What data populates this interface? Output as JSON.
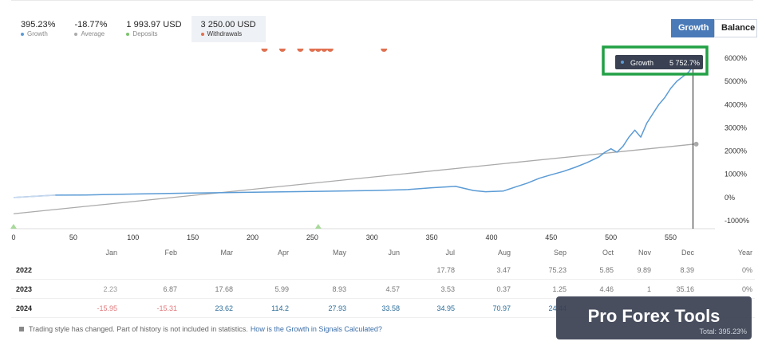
{
  "stats": [
    {
      "value": "395.23%",
      "label": "Growth",
      "color": "#5b9bd5"
    },
    {
      "value": "-18.77%",
      "label": "Average",
      "color": "#aaaaaa"
    },
    {
      "value": "1 993.97 USD",
      "label": "Deposits",
      "color": "#7cc36e"
    },
    {
      "value": "3 250.00 USD",
      "label": "Withdrawals",
      "color": "#e07050"
    }
  ],
  "toggle": {
    "growth": "Growth",
    "balance": "Balance"
  },
  "tooltip": {
    "label": "Growth",
    "value": "5 752.7%"
  },
  "chart_data": {
    "type": "line",
    "xlim": [
      0,
      575
    ],
    "ylim": [
      -1000,
      6000
    ],
    "x_ticks": [
      0,
      50,
      100,
      150,
      200,
      250,
      300,
      350,
      400,
      450,
      500,
      550
    ],
    "y_ticks": [
      "-1000%",
      "0%",
      "1000%",
      "2000%",
      "3000%",
      "4000%",
      "5000%",
      "6000%"
    ],
    "y_tick_values": [
      -1000,
      0,
      1000,
      2000,
      3000,
      4000,
      5000,
      6000
    ],
    "series": [
      {
        "name": "Growth",
        "color": "#5b9bd5",
        "x": [
          0,
          35,
          60,
          100,
          150,
          200,
          250,
          300,
          330,
          350,
          370,
          385,
          395,
          410,
          420,
          430,
          440,
          450,
          460,
          470,
          480,
          490,
          495,
          500,
          505,
          510,
          515,
          520,
          525,
          530,
          535,
          540,
          545,
          550,
          555,
          560,
          565,
          570
        ],
        "y": [
          0,
          100,
          110,
          150,
          190,
          230,
          260,
          300,
          340,
          420,
          480,
          300,
          250,
          280,
          450,
          620,
          830,
          980,
          1120,
          1300,
          1500,
          1750,
          1950,
          2100,
          1950,
          2200,
          2600,
          2900,
          2600,
          3200,
          3600,
          4000,
          4300,
          4700,
          5000,
          5200,
          5400,
          5750
        ]
      },
      {
        "name": "Average",
        "color": "#aaaaaa",
        "x": [
          0,
          570
        ],
        "y": [
          -700,
          2300
        ]
      }
    ],
    "deposits_markers": [
      0,
      255
    ],
    "withdrawal_markers": [
      210,
      225,
      240,
      250,
      255,
      260,
      265,
      310
    ]
  },
  "table": {
    "headers": [
      "Jan",
      "Feb",
      "Mar",
      "Apr",
      "May",
      "Jun",
      "Jul",
      "Aug",
      "Sep",
      "Oct",
      "Nov",
      "Dec",
      "Year"
    ],
    "rows": [
      {
        "year": "2022",
        "values": [
          "",
          "",
          "",
          "",
          "",
          "",
          "17.78",
          "3.47",
          "75.23",
          "5.85",
          "9.89",
          "8.39",
          "0%"
        ]
      },
      {
        "year": "2023",
        "values": [
          "2.23",
          "6.87",
          "17.68",
          "5.99",
          "8.93",
          "4.57",
          "3.53",
          "0.37",
          "1.25",
          "4.46",
          "1",
          "35.16",
          "0%"
        ]
      },
      {
        "year": "2024",
        "values": [
          "-15.95",
          "-15.31",
          "23.62",
          "114.2",
          "27.93",
          "33.58",
          "34.95",
          "70.97",
          "24.44",
          "",
          "",
          "",
          ""
        ]
      }
    ]
  },
  "note": {
    "text": "Trading style has changed. Part of history is not included in statistics.",
    "link": "How is the Growth in Signals Calculated?"
  },
  "badge": {
    "title": "Pro Forex Tools",
    "sub": "Total: 395.23%"
  }
}
